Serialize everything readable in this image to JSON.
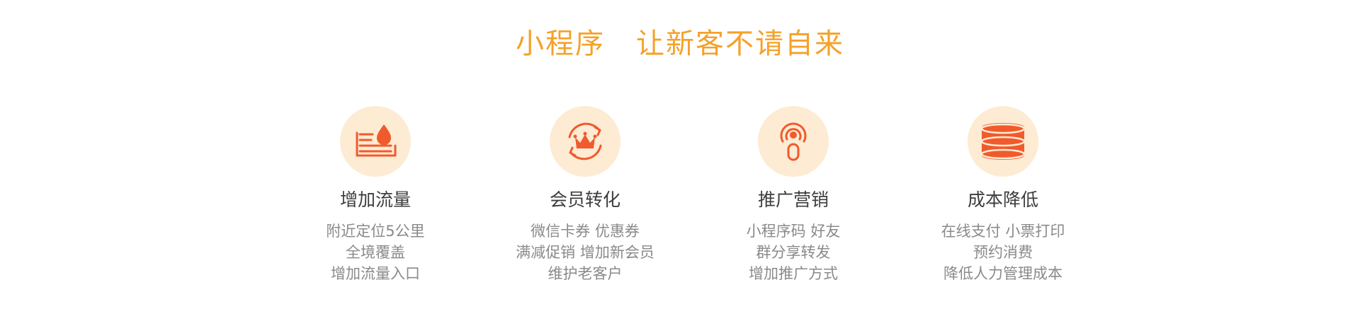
{
  "header": {
    "title_left": "小程序",
    "title_right": "让新客不请自来"
  },
  "colors": {
    "title": "#f5a12a",
    "icon_fg": "#f15a2c",
    "icon_bg": "#fdebd3",
    "heading": "#3d3d3d",
    "body": "#8a8a8a"
  },
  "features": [
    {
      "icon": "traffic-drop-icon",
      "title": "增加流量",
      "lines": [
        "附近定位5公里",
        "全境覆盖",
        "增加流量入口"
      ]
    },
    {
      "icon": "crown-refresh-icon",
      "title": "会员转化",
      "lines": [
        "微信卡券 优惠券",
        "满减促销 增加新会员",
        "维护老客户"
      ]
    },
    {
      "icon": "broadcast-icon",
      "title": "推广营销",
      "lines": [
        "小程序码 好友",
        "群分享转发",
        "增加推广方式"
      ]
    },
    {
      "icon": "cost-drum-icon",
      "title": "成本降低",
      "lines": [
        "在线支付 小票打印",
        "预约消费",
        "降低人力管理成本"
      ]
    }
  ]
}
